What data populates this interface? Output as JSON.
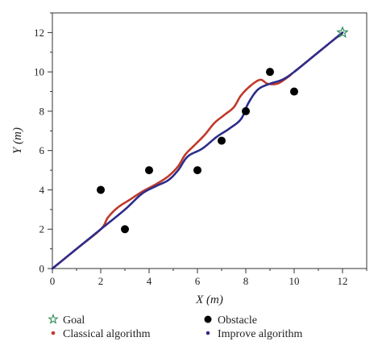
{
  "chart_data": {
    "type": "scatter",
    "title": "",
    "xlabel": "X (m)",
    "ylabel": "Y (m)",
    "xlim": [
      0,
      13
    ],
    "ylim": [
      0,
      13
    ],
    "x_ticks": [
      0,
      2,
      4,
      6,
      8,
      10,
      12
    ],
    "y_ticks": [
      0,
      2,
      4,
      6,
      8,
      10,
      12
    ],
    "grid": false,
    "legend_position": "bottom",
    "goal": {
      "name": "Goal",
      "x": 12,
      "y": 12,
      "color": "#2e8b57"
    },
    "obstacles": {
      "name": "Obstacle",
      "color": "#000000",
      "points": [
        {
          "x": 2,
          "y": 4
        },
        {
          "x": 3,
          "y": 2
        },
        {
          "x": 4,
          "y": 5
        },
        {
          "x": 6,
          "y": 5
        },
        {
          "x": 7,
          "y": 6.5
        },
        {
          "x": 8,
          "y": 8
        },
        {
          "x": 9,
          "y": 10
        },
        {
          "x": 10,
          "y": 9
        }
      ]
    },
    "series": [
      {
        "name": "Classical algorithm",
        "color": "#c0392b",
        "points": [
          {
            "x": 0,
            "y": 0
          },
          {
            "x": 1,
            "y": 1
          },
          {
            "x": 2,
            "y": 2
          },
          {
            "x": 2.3,
            "y": 2.6
          },
          {
            "x": 2.7,
            "y": 3.1
          },
          {
            "x": 3.2,
            "y": 3.5
          },
          {
            "x": 3.7,
            "y": 3.9
          },
          {
            "x": 4.3,
            "y": 4.3
          },
          {
            "x": 4.8,
            "y": 4.7
          },
          {
            "x": 5.2,
            "y": 5.2
          },
          {
            "x": 5.5,
            "y": 5.8
          },
          {
            "x": 5.9,
            "y": 6.3
          },
          {
            "x": 6.3,
            "y": 6.8
          },
          {
            "x": 6.7,
            "y": 7.4
          },
          {
            "x": 7.1,
            "y": 7.8
          },
          {
            "x": 7.5,
            "y": 8.2
          },
          {
            "x": 7.8,
            "y": 8.8
          },
          {
            "x": 8.2,
            "y": 9.3
          },
          {
            "x": 8.6,
            "y": 9.6
          },
          {
            "x": 8.9,
            "y": 9.4
          },
          {
            "x": 9.3,
            "y": 9.4
          },
          {
            "x": 9.7,
            "y": 9.7
          },
          {
            "x": 10,
            "y": 10
          },
          {
            "x": 11,
            "y": 11
          },
          {
            "x": 12,
            "y": 12
          }
        ]
      },
      {
        "name": "Improve algorithm",
        "color": "#2c2c8c",
        "points": [
          {
            "x": 0,
            "y": 0
          },
          {
            "x": 1,
            "y": 1
          },
          {
            "x": 2,
            "y": 2
          },
          {
            "x": 3,
            "y": 3
          },
          {
            "x": 3.7,
            "y": 3.8
          },
          {
            "x": 4.3,
            "y": 4.2
          },
          {
            "x": 4.8,
            "y": 4.5
          },
          {
            "x": 5.2,
            "y": 5
          },
          {
            "x": 5.6,
            "y": 5.7
          },
          {
            "x": 6.2,
            "y": 6.1
          },
          {
            "x": 6.8,
            "y": 6.7
          },
          {
            "x": 7.3,
            "y": 7.1
          },
          {
            "x": 7.8,
            "y": 7.6
          },
          {
            "x": 8.1,
            "y": 8.4
          },
          {
            "x": 8.5,
            "y": 9.1
          },
          {
            "x": 9,
            "y": 9.4
          },
          {
            "x": 9.5,
            "y": 9.6
          },
          {
            "x": 10,
            "y": 10
          },
          {
            "x": 11,
            "y": 11
          },
          {
            "x": 12,
            "y": 12
          }
        ]
      }
    ],
    "legend": [
      {
        "label": "Goal",
        "marker": "star-outline",
        "color": "#2e8b57"
      },
      {
        "label": "Obstacle",
        "marker": "filled-circle",
        "color": "#000000"
      },
      {
        "label": "Classical algorithm",
        "marker": "small-dot",
        "color": "#c0392b"
      },
      {
        "label": "Improve algorithm",
        "marker": "small-dot",
        "color": "#2c2c8c"
      }
    ]
  }
}
